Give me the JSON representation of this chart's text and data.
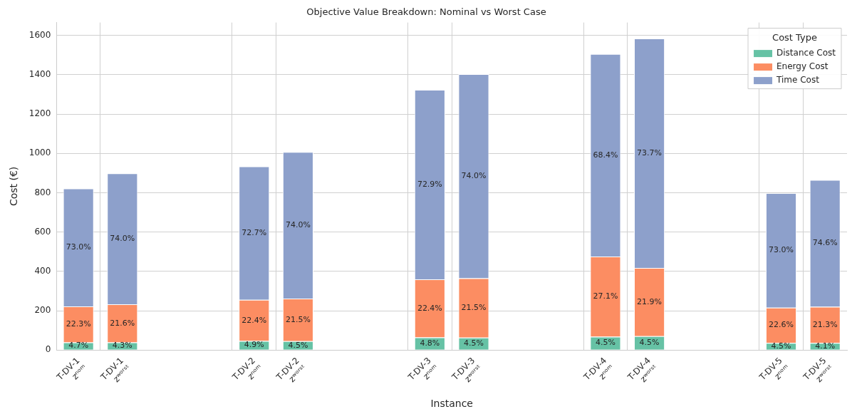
{
  "chart_data": {
    "type": "bar",
    "title": "Objective Value Breakdown: Nominal vs Worst Case",
    "xlabel": "Instance",
    "ylabel": "Cost (€)",
    "legend_title": "Cost Type",
    "categories": [
      "T-DV-1\nzⁿᵒᵐ",
      "T-DV-1\nzʷᵒʳˢᵗ",
      null,
      null,
      "T-DV-2\nzⁿᵒᵐ",
      "T-DV-2\nzʷᵒʳˢᵗ",
      null,
      null,
      "T-DV-3\nzⁿᵒᵐ",
      "T-DV-3\nzʷᵒʳˢᵗ",
      null,
      null,
      "T-DV-4\nzⁿᵒᵐ",
      "T-DV-4\nzʷᵒʳˢᵗ",
      null,
      null,
      "T-DV-5\nzⁿᵒᵐ",
      "T-DV-5\nzʷᵒʳˢᵗ"
    ],
    "stacked": true,
    "series": [
      {
        "name": "Distance Cost",
        "color": "#66c2a5",
        "values": [
          39,
          39,
          null,
          null,
          46,
          45,
          null,
          null,
          64,
          63,
          null,
          null,
          68,
          71,
          null,
          null,
          36,
          36
        ]
      },
      {
        "name": "Energy Cost",
        "color": "#fc8d62",
        "values": [
          183,
          194,
          null,
          null,
          209,
          217,
          null,
          null,
          296,
          302,
          null,
          null,
          408,
          347,
          null,
          null,
          180,
          184
        ]
      },
      {
        "name": "Time Cost",
        "color": "#8da0cb",
        "values": [
          600,
          666,
          null,
          null,
          679,
          746,
          null,
          null,
          964,
          1039,
          null,
          null,
          1030,
          1167,
          null,
          null,
          582,
          645
        ]
      }
    ],
    "annotations": [
      "4.7%",
      "22.3%",
      "73.0%",
      "4.3%",
      "21.6%",
      "74.0%",
      "4.9%",
      "22.4%",
      "72.7%",
      "4.5%",
      "21.5%",
      "74.0%",
      "4.8%",
      "22.4%",
      "72.9%",
      "4.5%",
      "21.5%",
      "74.0%",
      "4.5%",
      "27.1%",
      "68.4%",
      "4.5%",
      "21.9%",
      "73.7%",
      "4.5%",
      "22.6%",
      "73.0%",
      "4.1%",
      "21.3%",
      "74.6%"
    ],
    "ylim": [
      0,
      1666
    ],
    "yticks": [
      0,
      200,
      400,
      600,
      800,
      1000,
      1200,
      1400,
      1600
    ],
    "grid": true,
    "legend": "top right"
  }
}
